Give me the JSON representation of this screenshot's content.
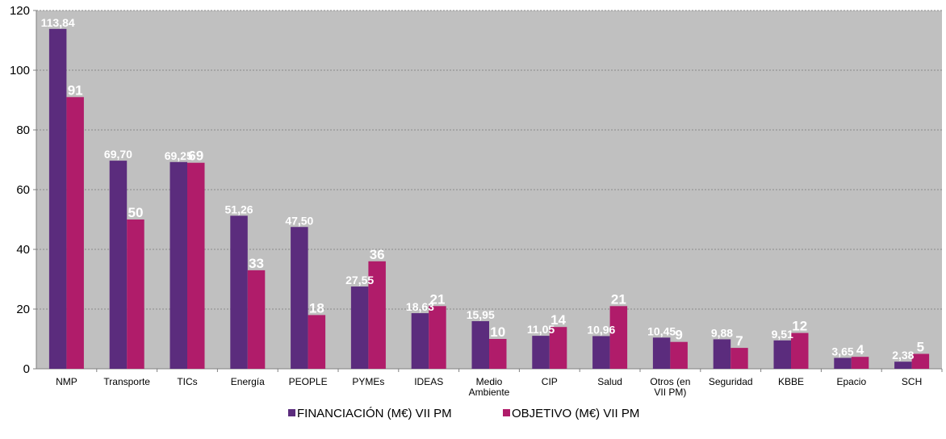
{
  "chart_data": {
    "type": "bar",
    "categories": [
      [
        "NMP"
      ],
      [
        "Transporte"
      ],
      [
        "TICs"
      ],
      [
        "Energía"
      ],
      [
        "PEOPLE"
      ],
      [
        "PYMEs"
      ],
      [
        "IDEAS"
      ],
      [
        "Medio",
        "Ambiente"
      ],
      [
        "CIP"
      ],
      [
        "Salud"
      ],
      [
        "Otros (en",
        "VII PM)"
      ],
      [
        "Seguridad"
      ],
      [
        "KBBE"
      ],
      [
        "Epacio"
      ],
      [
        "SCH"
      ]
    ],
    "series": [
      {
        "name": "FINANCIACIÓN (M€) VII PM",
        "color": "#5b2c7d",
        "values": [
          113.84,
          69.7,
          69.25,
          51.26,
          47.5,
          27.55,
          18.63,
          15.95,
          11.05,
          10.96,
          10.45,
          9.88,
          9.51,
          3.65,
          2.38
        ],
        "labels": [
          "113,84",
          "69,70",
          "69,25",
          "51,26",
          "47,50",
          "27,55",
          "18,63",
          "15,95",
          "11,05",
          "10,96",
          "10,45",
          "9,88",
          "9,51",
          "3,65",
          "2,38"
        ]
      },
      {
        "name": "OBJETIVO (M€) VII PM",
        "color": "#b01c6a",
        "values": [
          91,
          50,
          69,
          33,
          18,
          36,
          21,
          10,
          14,
          21,
          9,
          7,
          12,
          4,
          5
        ],
        "labels": [
          "91",
          "50",
          "69",
          "33",
          "18",
          "36",
          "21",
          "10",
          "14",
          "21",
          "9",
          "7",
          "12",
          "4",
          "5"
        ]
      }
    ],
    "ylim": [
      0,
      120
    ],
    "yticks": [
      0,
      20,
      40,
      60,
      80,
      100,
      120
    ],
    "grid": true,
    "plot_background": "#c0c0c0",
    "legend_position": "bottom"
  }
}
